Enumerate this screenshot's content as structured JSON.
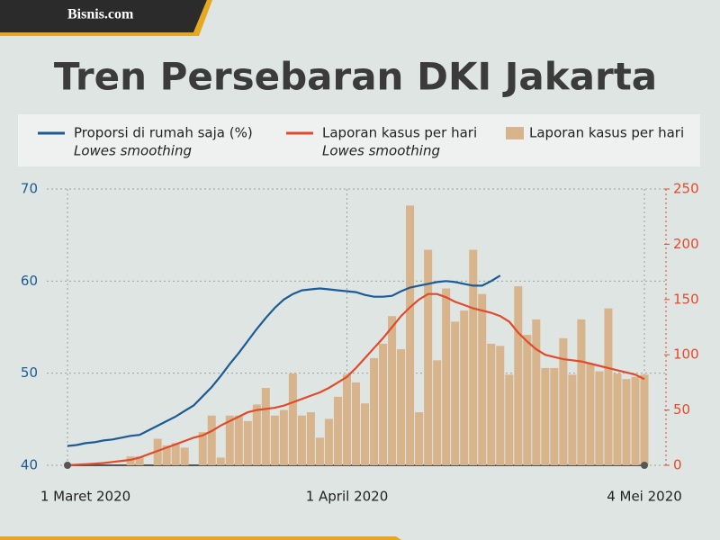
{
  "brand": "Bisnis.com",
  "chart_data": {
    "type": "combo",
    "title": "Tren Persebaran DKI Jakarta",
    "categories": [
      "1 Maret 2020",
      null,
      null,
      null,
      null,
      null,
      null,
      null,
      null,
      null,
      null,
      null,
      null,
      null,
      null,
      null,
      null,
      null,
      null,
      null,
      null,
      null,
      null,
      null,
      null,
      null,
      null,
      null,
      null,
      null,
      null,
      "1 April 2020",
      null,
      null,
      null,
      null,
      null,
      null,
      null,
      null,
      null,
      null,
      null,
      null,
      null,
      null,
      null,
      null,
      null,
      null,
      null,
      null,
      null,
      null,
      null,
      null,
      null,
      null,
      null,
      null,
      null,
      null,
      null,
      null,
      "4 Mei 2020"
    ],
    "ylim": [
      40,
      70
    ],
    "yticks": [
      40,
      50,
      60,
      70
    ],
    "y2lim": [
      0,
      250
    ],
    "y2ticks": [
      0,
      50,
      100,
      150,
      200,
      250
    ],
    "grid": true,
    "series": [
      {
        "name": "Proporsi di rumah saja (%)",
        "legend_note": "Lowes smoothing",
        "type": "line",
        "color": "#1c5b94",
        "values": [
          42.1,
          42.2,
          42.4,
          42.5,
          42.7,
          42.8,
          43.0,
          43.2,
          43.3,
          43.8,
          44.3,
          44.8,
          45.3,
          45.9,
          46.5,
          47.5,
          48.5,
          49.7,
          51,
          52.2,
          53.5,
          54.8,
          56,
          57.1,
          58,
          58.6,
          59,
          59.1,
          59.2,
          59.1,
          59,
          58.9,
          58.8,
          58.5,
          58.3,
          58.3,
          58.4,
          58.9,
          59.3,
          59.5,
          59.7,
          59.9,
          60,
          59.9,
          59.7,
          59.5,
          59.5,
          60,
          60.6,
          null,
          null,
          null,
          null,
          null,
          null,
          null,
          null,
          null,
          null,
          null,
          null,
          null,
          null,
          null,
          null
        ]
      },
      {
        "name": "Laporan kasus per hari",
        "legend_note": "Lowes smoothing",
        "type": "line",
        "axis": "y2",
        "color": "#e04b2b",
        "values": [
          0,
          0.5,
          1,
          1.5,
          2,
          3,
          4,
          5,
          7,
          10,
          13,
          16,
          19,
          22,
          25,
          27,
          31,
          36,
          40,
          44,
          48,
          50,
          51,
          52,
          54,
          57,
          60,
          63,
          66,
          70,
          75,
          80,
          88,
          97,
          106,
          115,
          125,
          135,
          143,
          150,
          155,
          155,
          152,
          148,
          145,
          142,
          140,
          138,
          135,
          130,
          120,
          112,
          105,
          100,
          98,
          96,
          95,
          94,
          92,
          90,
          88,
          86,
          84,
          82,
          78
        ]
      },
      {
        "name": "Laporan kasus per hari",
        "type": "bar",
        "axis": "y2",
        "color": "#d8b48c",
        "values": [
          0,
          0,
          0,
          0,
          0,
          0,
          0,
          8,
          8,
          0,
          24,
          18,
          20,
          16,
          0,
          30,
          45,
          7,
          45,
          45,
          40,
          55,
          70,
          45,
          50,
          83,
          45,
          48,
          25,
          42,
          62,
          82,
          75,
          56,
          97,
          110,
          135,
          105,
          235,
          48,
          195,
          95,
          160,
          130,
          140,
          195,
          155,
          110,
          108,
          82,
          162,
          118,
          132,
          88,
          88,
          115,
          82,
          132,
          92,
          85,
          142,
          83,
          78,
          80,
          82
        ]
      }
    ]
  }
}
